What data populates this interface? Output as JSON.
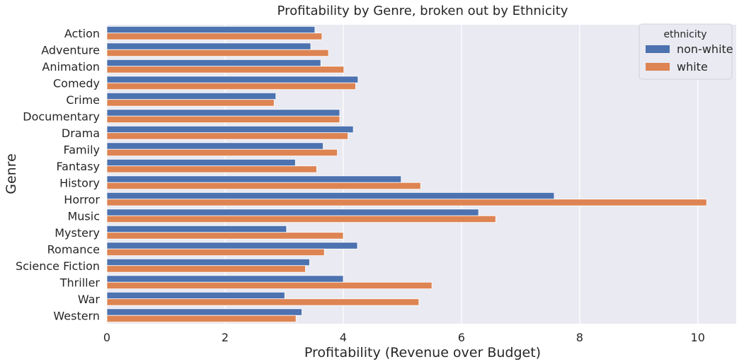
{
  "chart_data": {
    "type": "bar",
    "orientation": "horizontal",
    "title": "Profitability by Genre, broken out by Ethnicity",
    "xlabel": "Profitability (Revenue over Budget)",
    "ylabel": "Genre",
    "xlim": [
      0,
      10.65
    ],
    "xticks": [
      0,
      2,
      4,
      6,
      8,
      10
    ],
    "grid": true,
    "legend_title": "ethnicity",
    "legend_position": "top-right",
    "categories": [
      "Action",
      "Adventure",
      "Animation",
      "Comedy",
      "Crime",
      "Documentary",
      "Drama",
      "Family",
      "Fantasy",
      "History",
      "Horror",
      "Music",
      "Mystery",
      "Romance",
      "Science Fiction",
      "Thriller",
      "War",
      "Western"
    ],
    "series": [
      {
        "name": "non-white",
        "color": "#4c72b0",
        "values": [
          3.52,
          3.45,
          3.62,
          4.25,
          2.86,
          3.94,
          4.17,
          3.66,
          3.19,
          4.98,
          7.57,
          6.29,
          3.04,
          4.24,
          3.43,
          4.0,
          3.01,
          3.3
        ]
      },
      {
        "name": "white",
        "color": "#dd8452",
        "values": [
          3.64,
          3.75,
          4.01,
          4.21,
          2.83,
          3.94,
          4.08,
          3.9,
          3.55,
          5.31,
          10.15,
          6.58,
          4.0,
          3.68,
          3.36,
          5.5,
          5.28,
          3.2
        ]
      }
    ],
    "background": "#eaeaf2",
    "grid_color": "#ffffff"
  }
}
